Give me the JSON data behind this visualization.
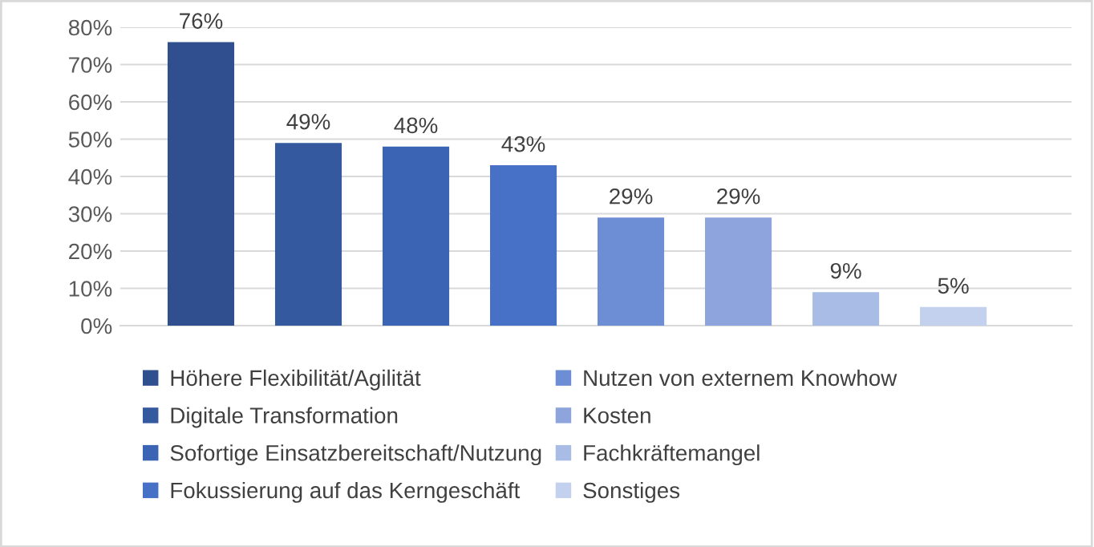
{
  "chart_data": {
    "type": "bar",
    "categories": [
      null
    ],
    "series": [
      {
        "name": "Höhere Flexibilität/Agilität",
        "color": "#2f4f8f",
        "values": [
          76
        ],
        "value_labels": [
          "76%"
        ]
      },
      {
        "name": "Digitale Transformation",
        "color": "#35599e",
        "values": [
          49
        ],
        "value_labels": [
          "49%"
        ]
      },
      {
        "name": "Sofortige Einsatzbereitschaft/Nutzung",
        "color": "#3c64b4",
        "values": [
          48
        ],
        "value_labels": [
          "48%"
        ]
      },
      {
        "name": "Fokussierung auf das Kerngeschäft",
        "color": "#4671c6",
        "values": [
          43
        ],
        "value_labels": [
          "43%"
        ]
      },
      {
        "name": "Nutzen von externem Knowhow",
        "color": "#6d8dd4",
        "values": [
          29
        ],
        "value_labels": [
          "29%"
        ]
      },
      {
        "name": "Kosten",
        "color": "#8da5dc",
        "values": [
          29
        ],
        "value_labels": [
          "29%"
        ]
      },
      {
        "name": "Fachkräftemangel",
        "color": "#a9bce6",
        "values": [
          9
        ],
        "value_labels": [
          "9%"
        ]
      },
      {
        "name": "Sonstiges",
        "color": "#c3d0ee",
        "values": [
          5
        ],
        "value_labels": [
          "5%"
        ]
      }
    ],
    "ylim": [
      0,
      80
    ],
    "yticks": [
      {
        "value": 0,
        "label": "0%"
      },
      {
        "value": 10,
        "label": "10%"
      },
      {
        "value": 20,
        "label": "20%"
      },
      {
        "value": 30,
        "label": "30%"
      },
      {
        "value": 40,
        "label": "40%"
      },
      {
        "value": 50,
        "label": "50%"
      },
      {
        "value": 60,
        "label": "60%"
      },
      {
        "value": 70,
        "label": "70%"
      },
      {
        "value": 80,
        "label": "80%"
      }
    ],
    "grid": "y",
    "legend": "bottom"
  }
}
